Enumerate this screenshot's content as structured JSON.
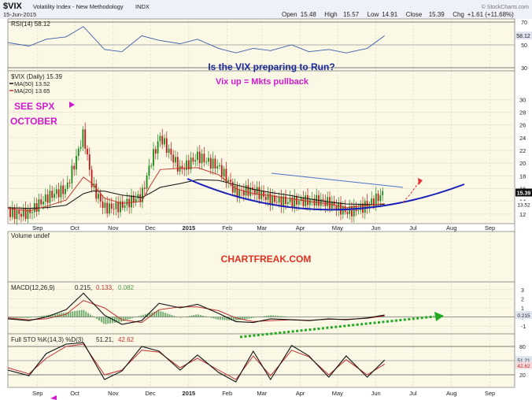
{
  "header": {
    "title": "$VIX",
    "subtitle": "Volatility Index - New Methodology",
    "exchange": "INDX",
    "date": "15-Jun-2015",
    "open_label": "Open",
    "open": "15.48",
    "high_label": "High",
    "high": "15.57",
    "low_label": "Low",
    "low": "14.91",
    "close_label": "Close",
    "close": "15.39",
    "chg_label": "Chg",
    "chg": "+1.61 (+11.68%)",
    "watermark": "© StockCharts.com"
  },
  "annotations": {
    "question": "Is the VIX preparing to Run?",
    "thesis": "Vix up = Mkts pullback",
    "see_spx": "SEE SPX",
    "october": "OCTOBER",
    "site": "CHARTFREAK.COM"
  },
  "colors": {
    "panel_bg": "#fbf8e6",
    "header_bg": "#eef1f8",
    "up": "#1a8a1a",
    "down": "#c81414",
    "ma50": "#111111",
    "ma20": "#c0392b",
    "arc": "#1a20b8",
    "trendline": "#4a72c8",
    "macd_arrow": "#22aa22",
    "magenta": "#d01ad0"
  },
  "chart_data": [
    {
      "type": "line",
      "panel": "rsi",
      "title": "RSI(14) 58.12",
      "ylim": [
        30,
        70
      ],
      "tick_labels": [
        "70",
        "50",
        "30"
      ],
      "last_value_label": "58.12",
      "x": [
        "2014-08-15",
        "2014-09-01",
        "2014-09-15",
        "2014-10-01",
        "2014-10-15",
        "2014-11-01",
        "2014-11-15",
        "2014-12-01",
        "2014-12-15",
        "2015-01-01",
        "2015-01-15",
        "2015-02-01",
        "2015-02-15",
        "2015-03-01",
        "2015-03-15",
        "2015-04-01",
        "2015-04-15",
        "2015-05-01",
        "2015-05-15",
        "2015-06-01",
        "2015-06-15"
      ],
      "series": [
        {
          "name": "RSI(14)",
          "values": [
            52,
            49,
            55,
            57,
            66,
            46,
            44,
            58,
            54,
            51,
            55,
            47,
            43,
            47,
            45,
            50,
            44,
            46,
            43,
            47,
            58
          ]
        }
      ]
    },
    {
      "type": "candlestick",
      "panel": "price",
      "title": "$VIX (Daily) 15.39",
      "ylim": [
        11,
        34
      ],
      "y_ticks": [
        12,
        14,
        16,
        18,
        20,
        22,
        24,
        26,
        28,
        30
      ],
      "x_tick_labels": [
        "Sep",
        "Oct",
        "Nov",
        "Dec",
        "2015",
        "Feb",
        "Mar",
        "Apr",
        "May",
        "Jun",
        "Jul",
        "Aug",
        "Sep"
      ],
      "x": [
        "2014-08-15",
        "2014-09-01",
        "2014-09-15",
        "2014-10-01",
        "2014-10-08",
        "2014-10-15",
        "2014-10-22",
        "2014-11-01",
        "2014-11-15",
        "2014-12-01",
        "2014-12-08",
        "2014-12-16",
        "2015-01-01",
        "2015-01-15",
        "2015-02-01",
        "2015-02-15",
        "2015-03-01",
        "2015-03-15",
        "2015-04-01",
        "2015-04-15",
        "2015-05-01",
        "2015-05-15",
        "2015-06-01",
        "2015-06-15"
      ],
      "series": [
        {
          "name": "$VIX (Daily)",
          "values": [
            12.8,
            12.3,
            14.0,
            15.5,
            20.0,
            25.0,
            17.0,
            13.5,
            13.2,
            14.2,
            19.5,
            24.0,
            19.5,
            21.5,
            19.0,
            14.8,
            15.8,
            14.9,
            14.2,
            13.6,
            13.3,
            12.6,
            14.0,
            15.39
          ]
        },
        {
          "name": "MA(50) 13.52",
          "values": [
            13.0,
            12.9,
            13.0,
            13.4,
            14.3,
            15.2,
            15.6,
            15.6,
            15.0,
            14.6,
            15.3,
            16.2,
            16.8,
            17.4,
            17.3,
            16.6,
            15.9,
            15.4,
            14.9,
            14.4,
            13.9,
            13.6,
            13.5,
            13.52
          ]
        },
        {
          "name": "MA(20) 13.65",
          "values": [
            12.9,
            12.5,
            13.2,
            14.2,
            16.0,
            17.8,
            16.8,
            14.5,
            13.7,
            14.0,
            16.5,
            19.0,
            19.2,
            19.3,
            18.2,
            16.0,
            15.2,
            14.9,
            14.4,
            14.0,
            13.6,
            13.0,
            13.4,
            13.65
          ]
        }
      ],
      "last_value_label": "15.39",
      "ma50_label": "13.52",
      "ma20_label": "13.65"
    },
    {
      "type": "bar",
      "panel": "volume",
      "title": "Volume undef"
    },
    {
      "type": "line",
      "panel": "macd",
      "title": "MACD(12,26,9) 0.215, 0.133, 0.082",
      "title_parts": [
        "MACD(12,26,9)",
        "0.215,",
        "0.133,",
        "0.082"
      ],
      "ylim": [
        -1.5,
        3.5
      ],
      "tick_labels": [
        "3",
        "2",
        "1",
        "0",
        "-1"
      ],
      "last_value_label": "0.215",
      "x": [
        "2014-08-15",
        "2014-09-01",
        "2014-09-15",
        "2014-10-01",
        "2014-10-15",
        "2014-11-01",
        "2014-11-15",
        "2014-12-01",
        "2014-12-15",
        "2015-01-01",
        "2015-01-15",
        "2015-02-01",
        "2015-02-15",
        "2015-03-01",
        "2015-03-15",
        "2015-04-01",
        "2015-04-15",
        "2015-05-01",
        "2015-05-15",
        "2015-06-01",
        "2015-06-15"
      ],
      "series": [
        {
          "name": "MACD",
          "values": [
            -0.2,
            -0.4,
            0.0,
            0.8,
            2.6,
            0.2,
            -0.8,
            -0.4,
            1.5,
            1.0,
            1.4,
            0.4,
            -0.5,
            -0.6,
            -0.2,
            -0.3,
            -0.4,
            -0.2,
            -0.3,
            -0.1,
            0.215
          ]
        },
        {
          "name": "Signal",
          "values": [
            -0.1,
            -0.3,
            -0.2,
            0.3,
            1.8,
            1.0,
            -0.3,
            -0.6,
            0.8,
            1.1,
            1.1,
            0.7,
            -0.1,
            -0.5,
            -0.4,
            -0.3,
            -0.35,
            -0.25,
            -0.25,
            -0.15,
            0.133
          ]
        },
        {
          "name": "Histogram",
          "values": [
            -0.1,
            -0.1,
            0.2,
            0.5,
            0.8,
            -0.8,
            -0.5,
            0.2,
            0.7,
            -0.1,
            0.3,
            -0.3,
            -0.4,
            -0.1,
            0.2,
            0.0,
            -0.05,
            0.05,
            -0.05,
            0.05,
            0.082
          ]
        }
      ]
    },
    {
      "type": "line",
      "panel": "sto",
      "title": "Full STO %K(14,3) %D(3) 51.21, 42.62",
      "title_parts": [
        "Full STO %K(14,3) %D(3)",
        "51.21,",
        "42.62"
      ],
      "ylim": [
        0,
        100
      ],
      "tick_labels": [
        "80",
        "50",
        "20"
      ],
      "last_value_labels": [
        "51.21",
        "42.62"
      ],
      "x": [
        "2014-08-15",
        "2014-09-01",
        "2014-09-15",
        "2014-10-01",
        "2014-10-15",
        "2014-11-01",
        "2014-11-15",
        "2014-12-01",
        "2014-12-15",
        "2015-01-01",
        "2015-01-15",
        "2015-02-01",
        "2015-02-15",
        "2015-03-01",
        "2015-03-15",
        "2015-04-01",
        "2015-04-15",
        "2015-05-01",
        "2015-05-15",
        "2015-06-01",
        "2015-06-15"
      ],
      "series": [
        {
          "name": "%K",
          "values": [
            30,
            18,
            65,
            85,
            88,
            10,
            28,
            80,
            70,
            30,
            62,
            25,
            5,
            70,
            10,
            82,
            60,
            15,
            60,
            15,
            51.21
          ]
        },
        {
          "name": "%D",
          "values": [
            35,
            22,
            55,
            80,
            85,
            20,
            30,
            72,
            68,
            35,
            55,
            30,
            10,
            60,
            18,
            72,
            58,
            20,
            52,
            20,
            42.62
          ]
        }
      ]
    }
  ]
}
